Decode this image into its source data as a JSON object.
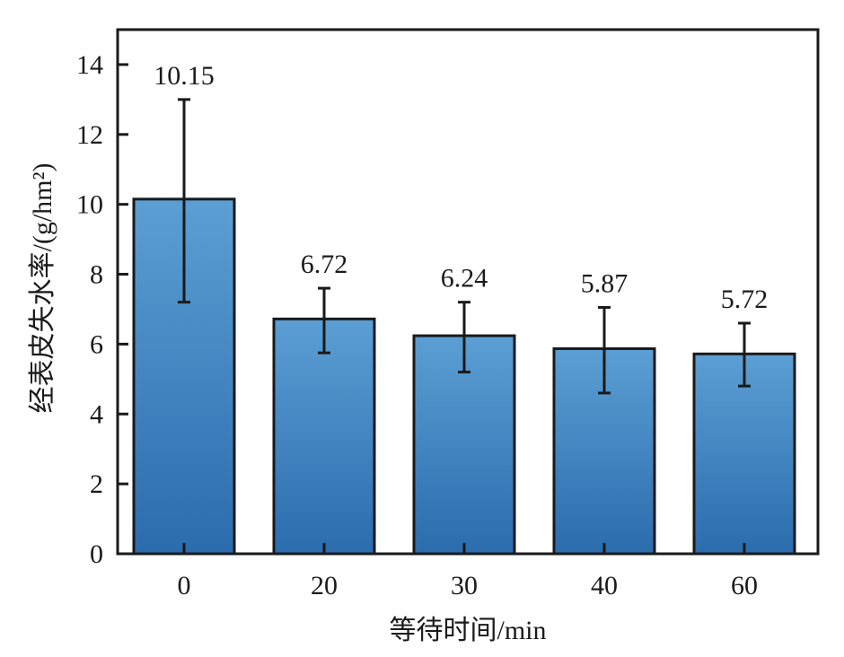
{
  "chart_data": {
    "type": "bar",
    "categories": [
      "0",
      "20",
      "30",
      "40",
      "60"
    ],
    "values": [
      10.15,
      6.72,
      6.24,
      5.87,
      5.72
    ],
    "error_low": [
      7.2,
      5.75,
      5.2,
      4.6,
      4.8
    ],
    "error_high": [
      13.0,
      7.6,
      7.2,
      7.05,
      6.6
    ],
    "data_labels": [
      "10.15",
      "6.72",
      "6.24",
      "5.87",
      "5.72"
    ],
    "xlabel": "等待时间/min",
    "ylabel": "经表皮失水率/(g/hm²)",
    "ylim": [
      0,
      15
    ],
    "yticks": [
      0,
      2,
      4,
      6,
      8,
      10,
      12,
      14
    ],
    "ytick_labels": [
      "0",
      "2",
      "4",
      "6",
      "8",
      "10",
      "12",
      "14"
    ],
    "grid": false,
    "colors": {
      "bar_top": "#5b9fd4",
      "bar_bottom": "#2b6cad",
      "bar_edge": "#1a1a1a",
      "axis": "#1a1a1a"
    }
  }
}
